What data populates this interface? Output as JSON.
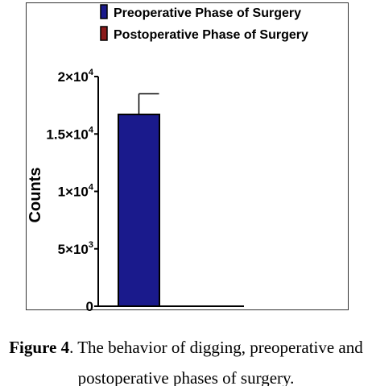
{
  "chart_data": {
    "type": "bar",
    "categories": [
      "Preoperative Phase of Surgery",
      "Postoperative Phase of Surgery"
    ],
    "values": [
      16700,
      0
    ],
    "error": [
      1800,
      0
    ],
    "ylabel": "Counts",
    "ylim": [
      0,
      20000
    ],
    "yticks": [
      {
        "value": 0,
        "base": "0",
        "exp": ""
      },
      {
        "value": 5000,
        "base": "5×10",
        "exp": "3"
      },
      {
        "value": 10000,
        "base": "1×10",
        "exp": "4"
      },
      {
        "value": 15000,
        "base": "1.5×10",
        "exp": "4"
      },
      {
        "value": 20000,
        "base": "2×10",
        "exp": "4"
      }
    ],
    "legend": {
      "placement": "top-right",
      "entries": [
        {
          "label": "Preoperative Phase of Surgery",
          "color": "#1a1a8c"
        },
        {
          "label": "Postoperative Phase of Surgery",
          "color": "#8b1a1a"
        }
      ]
    },
    "colors": [
      "#1a1a8c",
      "#8b1a1a"
    ],
    "grid": false
  },
  "caption": {
    "label": "Figure 4",
    "text_line1": ". The behavior of digging, preoperative and",
    "text_line2": "postoperative phases of surgery."
  }
}
